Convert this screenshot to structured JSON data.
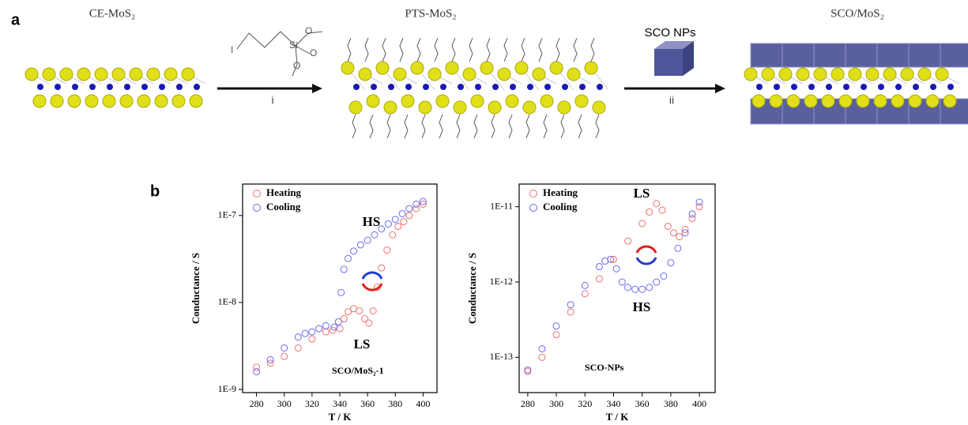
{
  "panel_a": {
    "label": "a",
    "stages": [
      "CE-MoS₂",
      "PTS-MoS₂",
      "SCO/MoS₂"
    ],
    "reagent": "SCO NPs",
    "steps": [
      "i",
      "ii"
    ],
    "molecule": [
      "I",
      "Si",
      "O",
      "O",
      "O"
    ]
  },
  "panel_b": {
    "label": "b"
  },
  "chart_data": [
    {
      "type": "scatter",
      "xlabel": "T / K",
      "ylabel": "Conductance / S",
      "label": "SCO/MoS₂-1",
      "annotations": [
        "HS",
        "LS"
      ],
      "log_y": true,
      "legend": "upper left",
      "xlim": [
        270,
        410
      ],
      "xticks": [
        280,
        300,
        320,
        340,
        360,
        380,
        400
      ],
      "ylim": [
        9.2e-10,
        2.3e-07
      ],
      "yticks": [
        {
          "value": 1e-09,
          "label": "1E-9"
        },
        {
          "value": 1e-08,
          "label": "1E-8"
        },
        {
          "value": 1e-07,
          "label": "1E-7"
        }
      ],
      "series": [
        {
          "name": "Heating",
          "color": "#f07070",
          "x": [
            280,
            290,
            300,
            310,
            320,
            330,
            335,
            340,
            343,
            346,
            350,
            354,
            358,
            361,
            364,
            367,
            370,
            374,
            378,
            382,
            386,
            390,
            395,
            400
          ],
          "values": [
            1.8e-09,
            2e-09,
            2.4e-09,
            3e-09,
            3.8e-09,
            4.6e-09,
            4.8e-09,
            5e-09,
            6.5e-09,
            7.8e-09,
            8.5e-09,
            8e-09,
            6.5e-09,
            5.8e-09,
            8e-09,
            1.5e-08,
            2.5e-08,
            4e-08,
            6e-08,
            7.5e-08,
            8.5e-08,
            1e-07,
            1.2e-07,
            1.35e-07
          ]
        },
        {
          "name": "Cooling",
          "color": "#6a6af0",
          "x": [
            400,
            395,
            390,
            385,
            380,
            375,
            370,
            365,
            360,
            355,
            350,
            346,
            343,
            341,
            339,
            336,
            330,
            325,
            320,
            315,
            310,
            300,
            290,
            280
          ],
          "values": [
            1.45e-07,
            1.35e-07,
            1.2e-07,
            1.05e-07,
            9e-08,
            8e-08,
            7e-08,
            6e-08,
            5.2e-08,
            4.6e-08,
            3.9e-08,
            3.2e-08,
            2.4e-08,
            1.3e-08,
            6e-09,
            5.2e-09,
            5.4e-09,
            5e-09,
            4.6e-09,
            4.4e-09,
            4e-09,
            3e-09,
            2.2e-09,
            1.6e-09
          ]
        }
      ]
    },
    {
      "type": "scatter",
      "xlabel": "T / K",
      "ylabel": "Conductance / S",
      "label": "SCO-NPs",
      "annotations": [
        "LS",
        "HS"
      ],
      "log_y": true,
      "legend": "upper left",
      "xlim": [
        274,
        411
      ],
      "xticks": [
        280,
        300,
        320,
        340,
        360,
        380,
        400
      ],
      "ylim": [
        3.4e-14,
        2e-11
      ],
      "yticks": [
        {
          "value": 1e-13,
          "label": "1E-13"
        },
        {
          "value": 1e-12,
          "label": "1E-12"
        },
        {
          "value": 1e-11,
          "label": "1E-11"
        }
      ],
      "series": [
        {
          "name": "Heating",
          "color": "#f07070",
          "x": [
            280,
            290,
            300,
            310,
            320,
            330,
            340,
            350,
            360,
            365,
            370,
            374,
            378,
            382,
            386,
            390,
            395,
            400
          ],
          "values": [
            6.5e-14,
            1e-13,
            2e-13,
            4e-13,
            7e-13,
            1.1e-12,
            2e-12,
            3.5e-12,
            6e-12,
            8.5e-12,
            1.1e-11,
            9e-12,
            5.5e-12,
            4.5e-12,
            4e-12,
            5e-12,
            7e-12,
            1e-11
          ]
        },
        {
          "name": "Cooling",
          "color": "#6a6af0",
          "x": [
            400,
            395,
            390,
            385,
            380,
            375,
            370,
            365,
            360,
            355,
            350,
            346,
            342,
            338,
            334,
            330,
            320,
            310,
            300,
            290,
            280
          ],
          "values": [
            1.15e-11,
            8e-12,
            4.5e-12,
            2.8e-12,
            1.8e-12,
            1.2e-12,
            1e-12,
            8.5e-13,
            8e-13,
            8e-13,
            8.5e-13,
            1e-12,
            1.5e-12,
            2e-12,
            1.9e-12,
            1.6e-12,
            9e-13,
            5e-13,
            2.6e-13,
            1.3e-13,
            6.8e-14
          ]
        }
      ]
    }
  ]
}
